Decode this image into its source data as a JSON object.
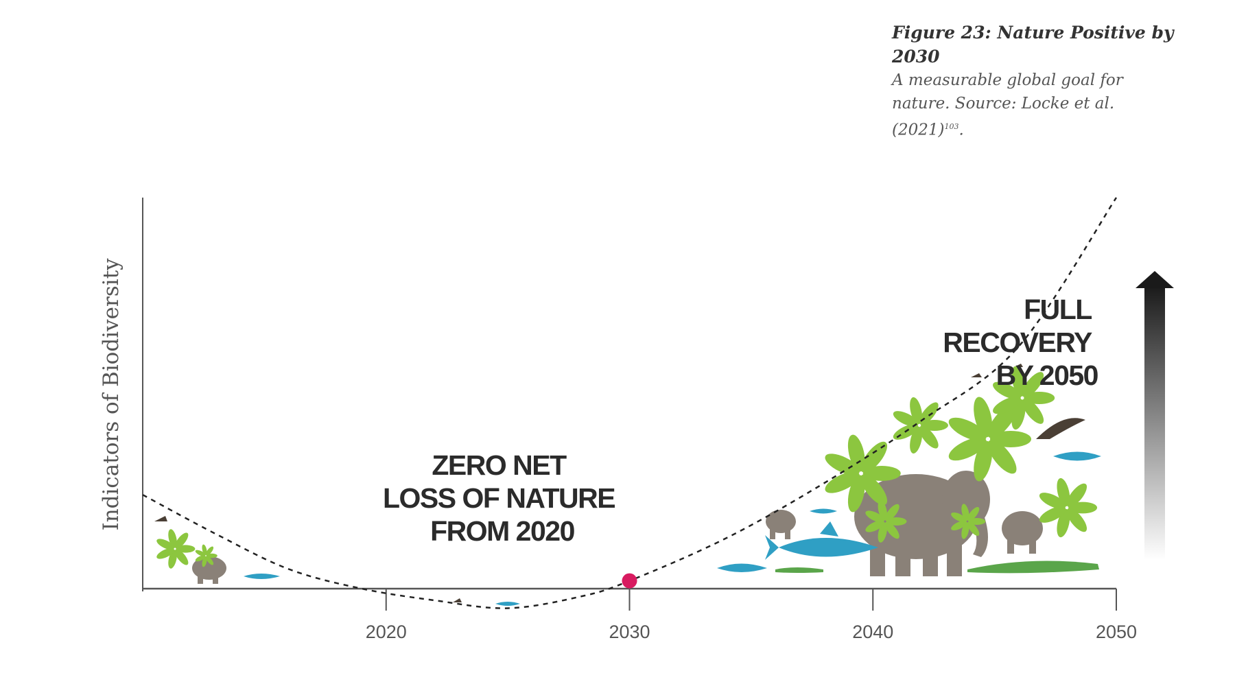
{
  "caption": {
    "title": "Figure 23: Nature Positive by 2030",
    "subtitle": "A measurable global goal for nature. Source: Locke et al. (2021)",
    "ref_mark": "103"
  },
  "chart_data": {
    "type": "line",
    "ylabel": "Indicators of Biodiversity",
    "xlabel": "",
    "x_ticks": [
      "2020",
      "2030",
      "2040",
      "2050"
    ],
    "x_range": [
      2010,
      2050
    ],
    "series": [
      {
        "style": "dashed",
        "x": [
          2010,
          2013,
          2016,
          2019,
          2022,
          2025,
          2028,
          2030,
          2034,
          2038,
          2042,
          2046,
          2050
        ],
        "y": [
          0.24,
          0.14,
          0.05,
          0.0,
          -0.03,
          -0.05,
          -0.02,
          0.02,
          0.13,
          0.27,
          0.43,
          0.62,
          1.0
        ]
      }
    ],
    "marker": {
      "x": 2030,
      "color": "#d81b60"
    },
    "annotations": [
      {
        "lines": [
          "ZERO NET",
          "LOSS OF NATURE",
          "FROM 2020"
        ]
      },
      {
        "lines": [
          "FULL",
          "RECOVERY",
          "BY 2050"
        ]
      }
    ],
    "colors": {
      "plants": "#8cc63f",
      "animals": "#8a8178",
      "fish": "#2f9fc4",
      "arrow": "#1a1a1a"
    }
  }
}
